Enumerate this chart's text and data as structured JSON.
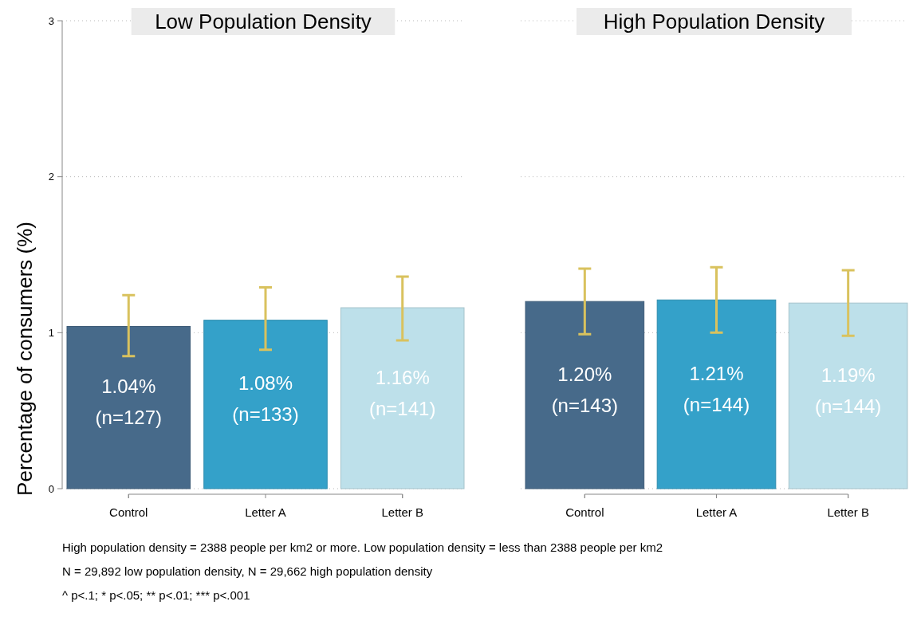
{
  "chart_data": [
    {
      "type": "bar",
      "title": "Low Population Density",
      "ylabel": "Percentage of consumers (%)",
      "categories": [
        "Control",
        "Letter A",
        "Letter B"
      ],
      "values": [
        1.04,
        1.08,
        1.16
      ],
      "colors": [
        "#476a8a",
        "#34a1c9",
        "#bde0ea"
      ],
      "errors": [
        [
          0.85,
          1.24
        ],
        [
          0.89,
          1.29
        ],
        [
          0.95,
          1.36
        ]
      ],
      "value_labels": [
        "1.04%\n(n=127)",
        "1.08%\n(n=133)",
        "1.16%\n(n=141)"
      ],
      "ylim": [
        0,
        3
      ],
      "yticks": [
        0,
        1,
        2,
        3
      ],
      "grid": "y",
      "annotations": [
        "High population density = 2388 people per km2 or more. Low population density = less than 2388 people per km2",
        "N = 29,892 low population density, N = 29,662 high population density",
        "^ p<.1; * p<.05; ** p<.01; *** p<.001"
      ]
    },
    {
      "type": "bar",
      "title": "High Population Density",
      "categories": [
        "Control",
        "Letter A",
        "Letter B"
      ],
      "values": [
        1.2,
        1.21,
        1.19
      ],
      "colors": [
        "#476a8a",
        "#34a1c9",
        "#bde0ea"
      ],
      "errors": [
        [
          0.99,
          1.41
        ],
        [
          1.0,
          1.42
        ],
        [
          0.98,
          1.4
        ]
      ],
      "value_labels": [
        "1.20%\n(n=143)",
        "1.21%\n(n=144)",
        "1.19%\n(n=144)"
      ],
      "ylim": [
        0,
        3
      ],
      "yticks": [
        0,
        1,
        2,
        3
      ],
      "grid": "y",
      "tick_labels": "x"
    }
  ]
}
